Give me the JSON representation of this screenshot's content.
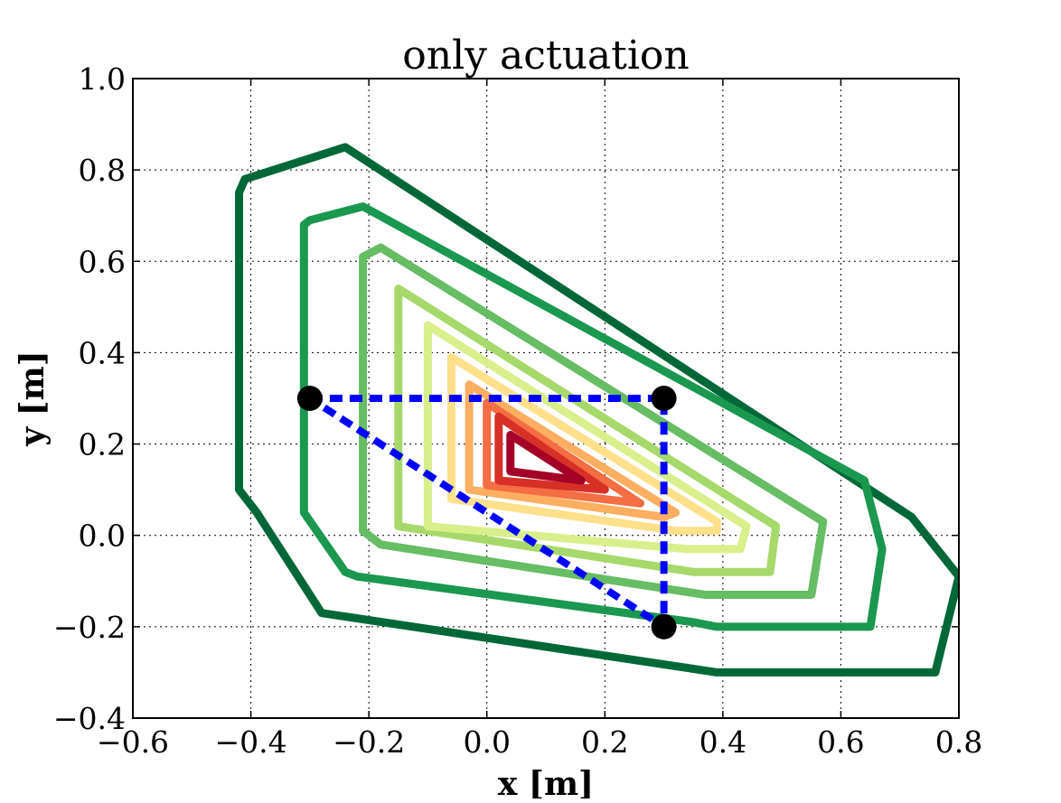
{
  "chart_data": {
    "type": "line",
    "title": "only actuation",
    "xlabel": "x [m]",
    "ylabel": "y [m]",
    "xlim": [
      -0.6,
      0.8
    ],
    "ylim": [
      -0.4,
      1.0
    ],
    "xticks": [
      -0.6,
      -0.4,
      -0.2,
      0.0,
      0.2,
      0.4,
      0.6,
      0.8
    ],
    "yticks": [
      -0.4,
      -0.2,
      0.0,
      0.2,
      0.4,
      0.6,
      0.8,
      1.0
    ],
    "xtick_labels": [
      "−0.6",
      "−0.4",
      "−0.2",
      "0.0",
      "0.2",
      "0.4",
      "0.6",
      "0.8"
    ],
    "ytick_labels": [
      "−0.4",
      "−0.2",
      "0.0",
      "0.2",
      "0.4",
      "0.6",
      "0.8",
      "1.0"
    ],
    "grid": true,
    "grid_style": "dotted",
    "colormap": "RdYlGn",
    "series": [
      {
        "color": "#006837",
        "points": [
          [
            -0.41,
            0.78
          ],
          [
            -0.42,
            0.75
          ],
          [
            -0.42,
            0.1
          ],
          [
            -0.39,
            0.05
          ],
          [
            -0.28,
            -0.17
          ],
          [
            0.39,
            -0.3
          ],
          [
            0.5,
            -0.3
          ],
          [
            0.76,
            -0.3
          ],
          [
            0.8,
            -0.09
          ],
          [
            0.72,
            0.04
          ],
          [
            -0.24,
            0.85
          ],
          [
            -0.41,
            0.78
          ]
        ]
      },
      {
        "color": "#1a9850",
        "points": [
          [
            -0.31,
            0.68
          ],
          [
            -0.3,
            0.69
          ],
          [
            -0.21,
            0.72
          ],
          [
            0.64,
            0.12
          ],
          [
            0.67,
            -0.03
          ],
          [
            0.65,
            -0.2
          ],
          [
            0.39,
            -0.2
          ],
          [
            0.35,
            -0.19
          ],
          [
            -0.22,
            -0.09
          ],
          [
            -0.24,
            -0.08
          ],
          [
            -0.31,
            0.05
          ],
          [
            -0.31,
            0.68
          ]
        ]
      },
      {
        "color": "#66bd63",
        "points": [
          [
            -0.21,
            0.61
          ],
          [
            -0.18,
            0.63
          ],
          [
            0.57,
            0.03
          ],
          [
            0.55,
            -0.13
          ],
          [
            0.37,
            -0.13
          ],
          [
            -0.18,
            -0.02
          ],
          [
            -0.21,
            0.01
          ],
          [
            -0.21,
            0.61
          ]
        ]
      },
      {
        "color": "#a6d96a",
        "points": [
          [
            -0.15,
            0.54
          ],
          [
            -0.15,
            0.02
          ],
          [
            0.35,
            -0.08
          ],
          [
            0.48,
            -0.08
          ],
          [
            0.49,
            0.02
          ],
          [
            -0.15,
            0.54
          ]
        ]
      },
      {
        "color": "#d9ef8b",
        "points": [
          [
            -0.1,
            0.46
          ],
          [
            -0.1,
            0.02
          ],
          [
            0.34,
            -0.03
          ],
          [
            0.43,
            -0.03
          ],
          [
            0.44,
            0.02
          ],
          [
            -0.1,
            0.46
          ]
        ]
      },
      {
        "color": "#fee08b",
        "points": [
          [
            -0.06,
            0.39
          ],
          [
            -0.06,
            0.08
          ],
          [
            0.32,
            0.01
          ],
          [
            0.39,
            0.01
          ],
          [
            0.39,
            0.03
          ],
          [
            -0.06,
            0.39
          ]
        ]
      },
      {
        "color": "#fdae61",
        "points": [
          [
            -0.03,
            0.33
          ],
          [
            -0.03,
            0.1
          ],
          [
            0.3,
            0.04
          ],
          [
            0.32,
            0.05
          ],
          [
            -0.03,
            0.33
          ]
        ]
      },
      {
        "color": "#f46d43",
        "points": [
          [
            0.0,
            0.29
          ],
          [
            0.0,
            0.11
          ],
          [
            0.26,
            0.07
          ],
          [
            0.0,
            0.29
          ]
        ]
      },
      {
        "color": "#d73027",
        "points": [
          [
            0.02,
            0.26
          ],
          [
            0.02,
            0.12
          ],
          [
            0.2,
            0.1
          ],
          [
            0.02,
            0.26
          ]
        ]
      },
      {
        "color": "#a50026",
        "points": [
          [
            0.04,
            0.22
          ],
          [
            0.04,
            0.14
          ],
          [
            0.16,
            0.12
          ],
          [
            0.04,
            0.22
          ]
        ]
      }
    ],
    "reference_triangle": {
      "color": "#0000ff",
      "style": "dashed",
      "points": [
        [
          -0.3,
          0.3
        ],
        [
          0.3,
          0.3
        ],
        [
          0.3,
          -0.2
        ],
        [
          -0.3,
          0.3
        ]
      ]
    },
    "markers": {
      "color": "#000000",
      "points": [
        [
          -0.3,
          0.3
        ],
        [
          0.3,
          0.3
        ],
        [
          0.3,
          -0.2
        ]
      ]
    }
  }
}
